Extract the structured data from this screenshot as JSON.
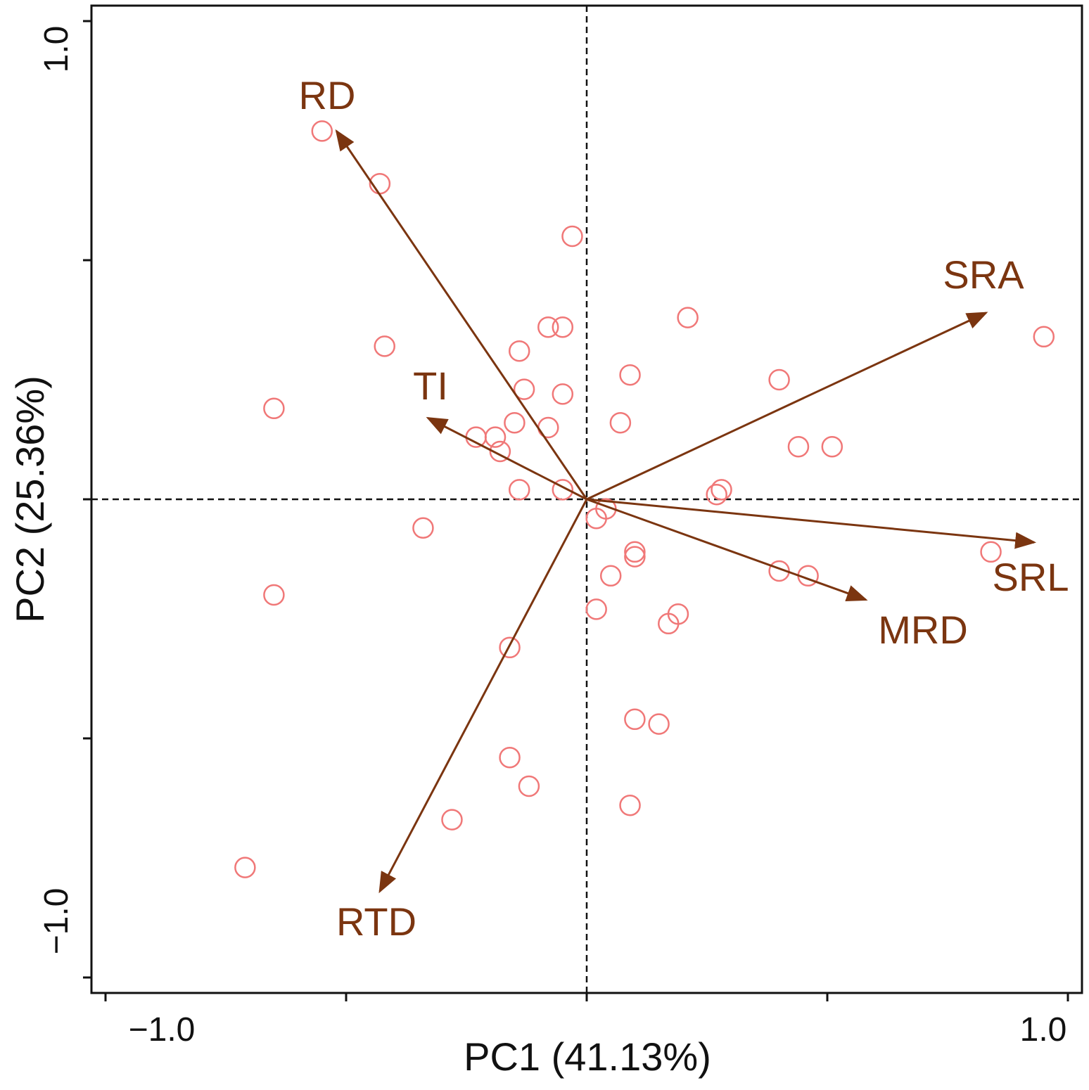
{
  "chart_data": {
    "type": "scatter",
    "subtype": "pca-biplot",
    "xlabel": "PC1 (41.13%)",
    "ylabel": "PC2 (25.36%)",
    "xlim": [
      -1.0,
      1.0
    ],
    "ylim": [
      -1.0,
      1.0
    ],
    "x_ticks": [
      -1.0,
      -0.5,
      0.0,
      0.5,
      1.0
    ],
    "x_tick_labels": [
      "−1.0",
      "",
      "",
      "",
      "1.0"
    ],
    "y_ticks": [
      -1.0,
      -0.5,
      0.0,
      0.5,
      1.0
    ],
    "y_tick_labels": [
      "−1.0",
      "",
      "",
      "",
      "1.0"
    ],
    "reference_lines": {
      "x": 0,
      "y": 0,
      "style": "dashed"
    },
    "grid": false,
    "colors": {
      "points": "#f07878",
      "arrows": "#7b3510",
      "axes": "#111111"
    },
    "loadings": [
      {
        "label": "RD",
        "x": -0.52,
        "y": 0.77
      },
      {
        "label": "SRA",
        "x": 0.83,
        "y": 0.39
      },
      {
        "label": "TI",
        "x": -0.33,
        "y": 0.17
      },
      {
        "label": "SRL",
        "x": 0.93,
        "y": -0.09
      },
      {
        "label": "MRD",
        "x": 0.58,
        "y": -0.21
      },
      {
        "label": "RTD",
        "x": -0.43,
        "y": -0.82
      }
    ],
    "scores": [
      {
        "x": -0.55,
        "y": 0.77
      },
      {
        "x": -0.43,
        "y": 0.66
      },
      {
        "x": -0.03,
        "y": 0.55
      },
      {
        "x": 0.21,
        "y": 0.38
      },
      {
        "x": 0.95,
        "y": 0.34
      },
      {
        "x": -0.42,
        "y": 0.32
      },
      {
        "x": -0.14,
        "y": 0.31
      },
      {
        "x": -0.08,
        "y": 0.36
      },
      {
        "x": -0.05,
        "y": 0.36
      },
      {
        "x": 0.09,
        "y": 0.26
      },
      {
        "x": 0.4,
        "y": 0.25
      },
      {
        "x": -0.13,
        "y": 0.23
      },
      {
        "x": -0.05,
        "y": 0.22
      },
      {
        "x": -0.65,
        "y": 0.19
      },
      {
        "x": 0.07,
        "y": 0.16
      },
      {
        "x": -0.15,
        "y": 0.16
      },
      {
        "x": -0.08,
        "y": 0.15
      },
      {
        "x": -0.23,
        "y": 0.13
      },
      {
        "x": -0.19,
        "y": 0.13
      },
      {
        "x": -0.18,
        "y": 0.1
      },
      {
        "x": 0.44,
        "y": 0.11
      },
      {
        "x": 0.51,
        "y": 0.11
      },
      {
        "x": 0.28,
        "y": 0.02
      },
      {
        "x": 0.27,
        "y": 0.01
      },
      {
        "x": -0.14,
        "y": 0.02
      },
      {
        "x": -0.05,
        "y": 0.02
      },
      {
        "x": 0.04,
        "y": -0.02
      },
      {
        "x": 0.02,
        "y": -0.04
      },
      {
        "x": -0.34,
        "y": -0.06
      },
      {
        "x": 0.1,
        "y": -0.11
      },
      {
        "x": 0.1,
        "y": -0.12
      },
      {
        "x": 0.84,
        "y": -0.11
      },
      {
        "x": 0.4,
        "y": -0.15
      },
      {
        "x": 0.46,
        "y": -0.16
      },
      {
        "x": 0.05,
        "y": -0.16
      },
      {
        "x": -0.65,
        "y": -0.2
      },
      {
        "x": 0.02,
        "y": -0.23
      },
      {
        "x": 0.19,
        "y": -0.24
      },
      {
        "x": 0.17,
        "y": -0.26
      },
      {
        "x": -0.16,
        "y": -0.31
      },
      {
        "x": 0.1,
        "y": -0.46
      },
      {
        "x": 0.15,
        "y": -0.47
      },
      {
        "x": -0.16,
        "y": -0.54
      },
      {
        "x": -0.12,
        "y": -0.6
      },
      {
        "x": 0.09,
        "y": -0.64
      },
      {
        "x": -0.28,
        "y": -0.67
      },
      {
        "x": -0.71,
        "y": -0.77
      }
    ]
  }
}
